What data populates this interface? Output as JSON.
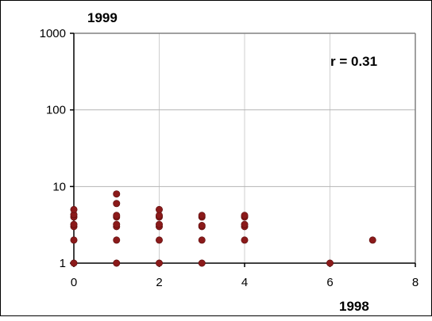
{
  "chart_data": {
    "type": "scatter",
    "title": "",
    "xlabel": "1998",
    "ylabel": "1999",
    "xlim": [
      0,
      8
    ],
    "ylim": [
      1,
      1000
    ],
    "yscale": "log",
    "x_ticks": [
      "0",
      "2",
      "4",
      "6",
      "8"
    ],
    "y_ticks": [
      "1",
      "10",
      "100",
      "1000"
    ],
    "grid": "horizontal and vertical",
    "annotation": "r = 0.31",
    "marker_color": "#8b1a1a",
    "series": [
      {
        "points": [
          [
            0,
            1
          ],
          [
            0,
            2
          ],
          [
            0,
            3
          ],
          [
            0,
            3.2
          ],
          [
            0,
            4
          ],
          [
            0,
            4.3
          ],
          [
            0,
            5
          ],
          [
            1,
            1
          ],
          [
            1,
            2
          ],
          [
            1,
            3
          ],
          [
            1,
            3.2
          ],
          [
            1,
            4
          ],
          [
            1,
            4.2
          ],
          [
            1,
            6
          ],
          [
            1,
            8
          ],
          [
            2,
            1
          ],
          [
            2,
            2
          ],
          [
            2,
            3
          ],
          [
            2,
            3.2
          ],
          [
            2,
            4
          ],
          [
            2,
            4.2
          ],
          [
            2,
            5
          ],
          [
            3,
            1
          ],
          [
            3,
            2
          ],
          [
            3,
            3
          ],
          [
            3,
            3.1
          ],
          [
            3,
            4
          ],
          [
            3,
            4.2
          ],
          [
            4,
            2
          ],
          [
            4,
            3
          ],
          [
            4,
            3.2
          ],
          [
            4,
            4
          ],
          [
            4,
            4.2
          ],
          [
            6,
            1
          ],
          [
            7,
            2
          ]
        ]
      }
    ]
  }
}
